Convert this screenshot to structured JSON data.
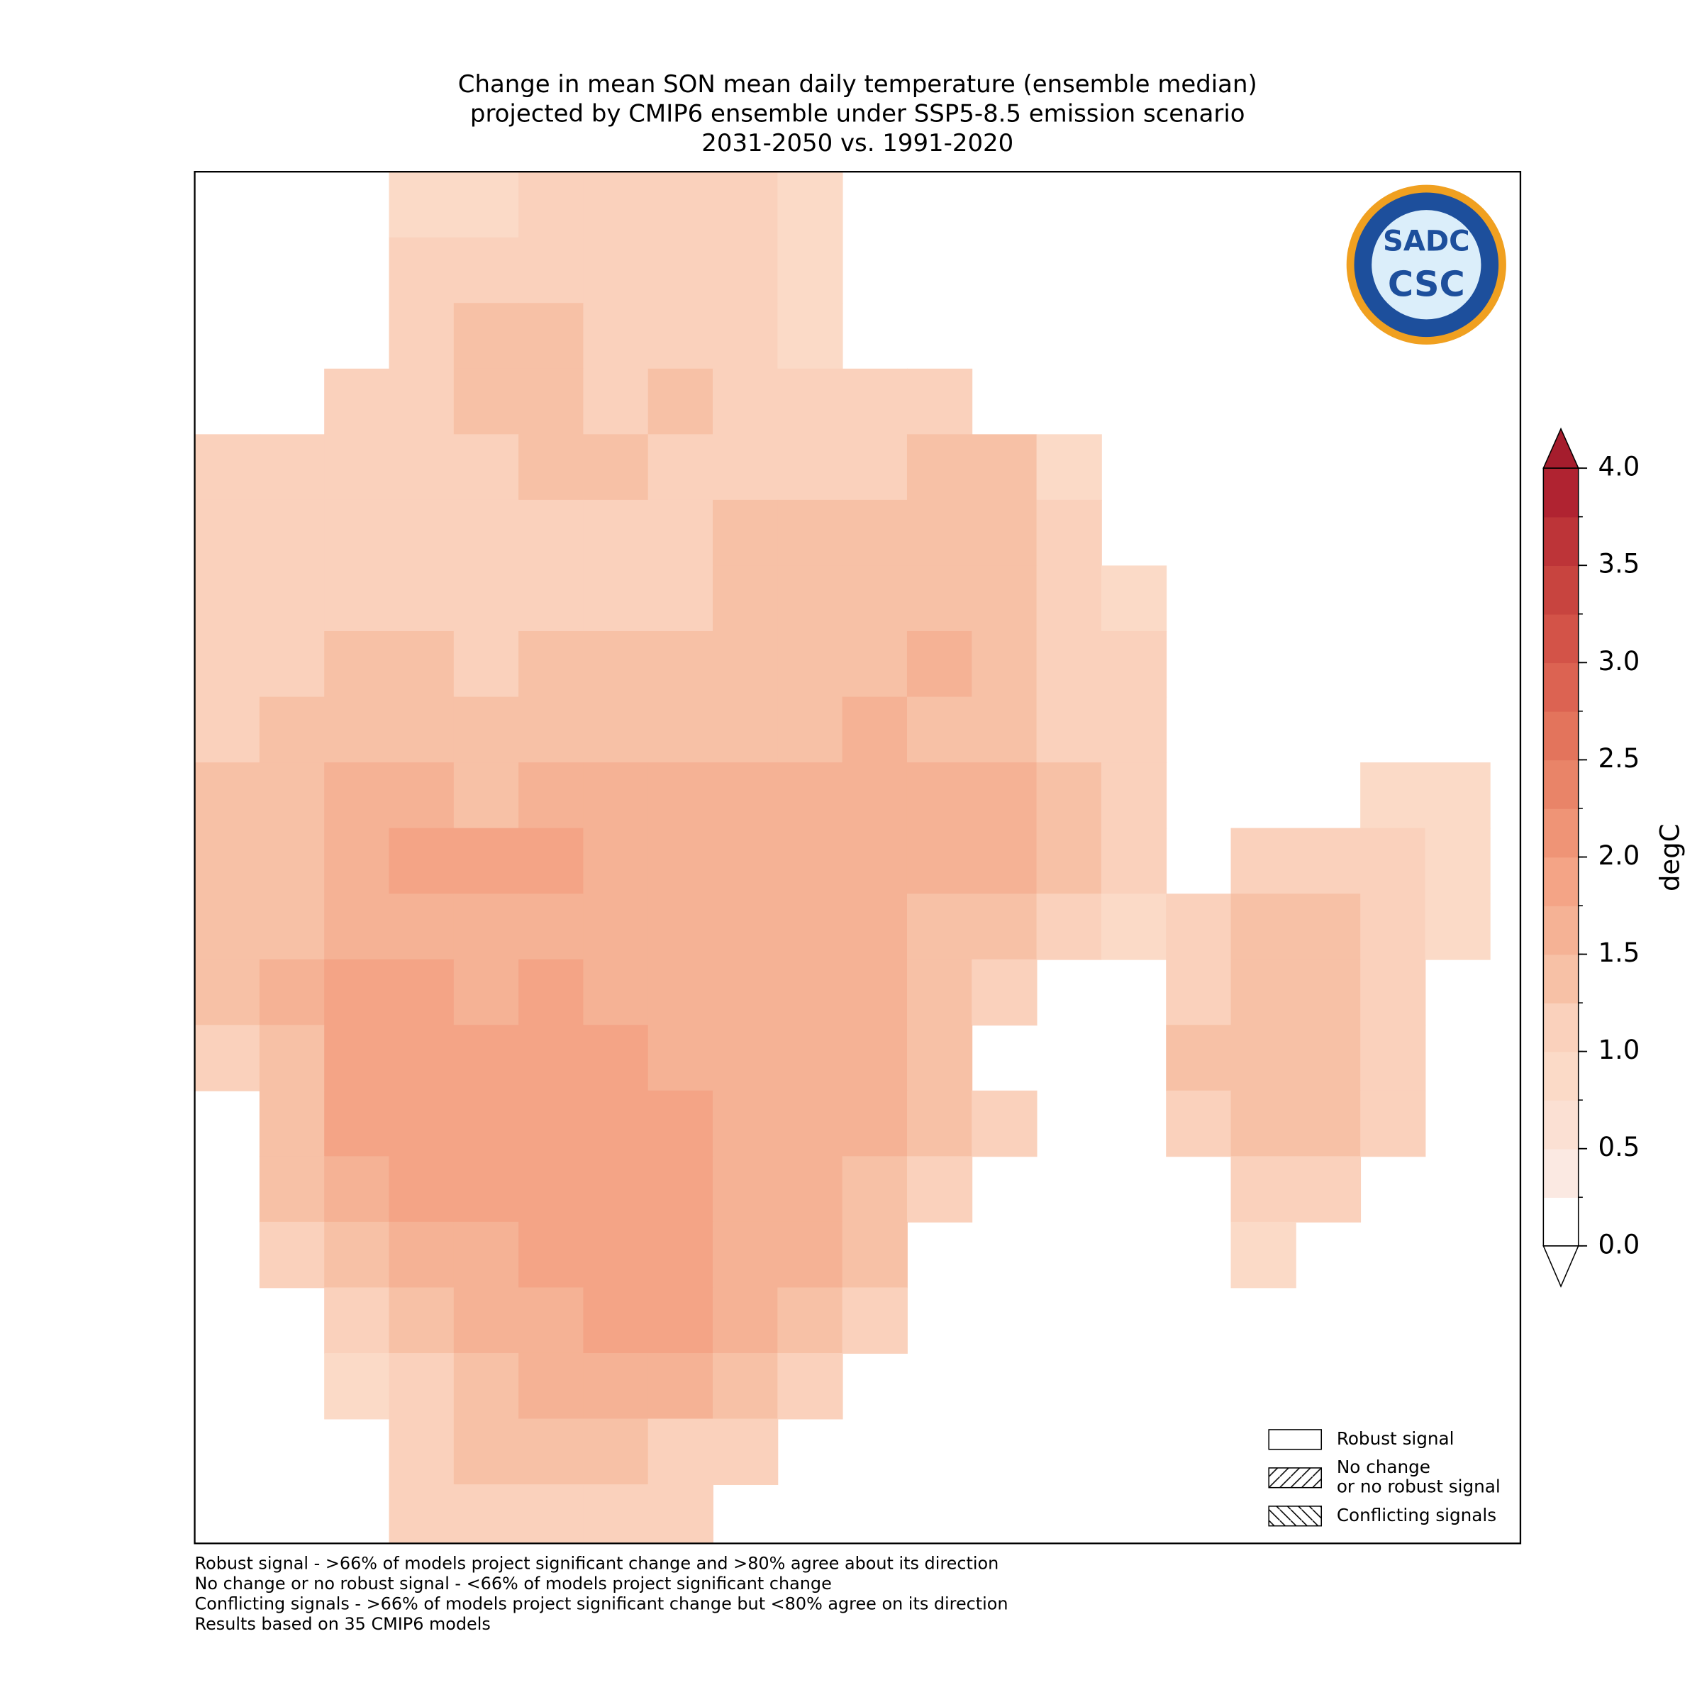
{
  "chart_data": {
    "type": "map",
    "title": [
      "Change in mean SON mean daily temperature (ensemble median)",
      "projected by CMIP6 ensemble under SSP5-8.5 emission scenario",
      "2031-2050 vs. 1991-2020"
    ],
    "colorbar": {
      "label": "degC",
      "levels": [
        0,
        0.25,
        0.5,
        0.75,
        1,
        1.25,
        1.5,
        1.75,
        2,
        2.25,
        2.5,
        2.75,
        3,
        3.25,
        3.5,
        3.75,
        4
      ],
      "colors": [
        "#ffffff",
        "#fbe9e2",
        "#fbe0d3",
        "#fbdac7",
        "#fad1bc",
        "#f7c1a6",
        "#f5b295",
        "#f4a486",
        "#ef9476",
        "#e98468",
        "#e3745c",
        "#dc6352",
        "#d35348",
        "#c8443f",
        "#bd3438",
        "#b02331"
      ],
      "over_color": "#a51d2d",
      "under_color": "#ffffff",
      "ticks": [
        {
          "value": 0,
          "label": "0.0"
        },
        0.5,
        {
          "value": 1,
          "label": "1.0"
        },
        1.5,
        {
          "value": 2,
          "label": "2.0"
        },
        2.5,
        {
          "value": 3,
          "label": "3.0"
        },
        3.5,
        {
          "value": 4,
          "label": "4.0"
        }
      ]
    },
    "cells": [
      [
        null,
        null,
        null,
        0.9,
        0.9,
        1.0,
        1.0,
        1.0,
        1.0,
        0.9,
        null,
        null,
        null,
        null,
        null,
        null,
        null,
        null,
        null,
        null,
        null
      ],
      [
        null,
        null,
        null,
        1.1,
        1.1,
        1.1,
        1.1,
        1.1,
        1.1,
        0.9,
        null,
        null,
        null,
        null,
        null,
        null,
        null,
        null,
        null,
        null,
        null
      ],
      [
        null,
        null,
        null,
        1.1,
        1.3,
        1.3,
        1.1,
        1.1,
        1.1,
        0.9,
        null,
        null,
        null,
        null,
        null,
        null,
        null,
        null,
        null,
        null,
        null
      ],
      [
        null,
        null,
        1.1,
        1.1,
        1.3,
        1.3,
        1.1,
        1.3,
        1.1,
        1.1,
        1.1,
        1.1,
        null,
        null,
        null,
        null,
        null,
        null,
        null,
        null,
        null
      ],
      [
        1.1,
        1.1,
        1.1,
        1.1,
        1.1,
        1.3,
        1.3,
        1.1,
        1.1,
        1.1,
        1.1,
        1.3,
        1.3,
        0.9,
        null,
        null,
        null,
        null,
        null,
        null,
        null
      ],
      [
        1.1,
        1.1,
        1.1,
        1.1,
        1.1,
        1.1,
        1.1,
        1.1,
        1.3,
        1.3,
        1.3,
        1.3,
        1.3,
        1.1,
        null,
        null,
        null,
        null,
        null,
        null,
        null
      ],
      [
        1.1,
        1.1,
        1.1,
        1.1,
        1.1,
        1.1,
        1.1,
        1.1,
        1.3,
        1.3,
        1.3,
        1.3,
        1.3,
        1.1,
        0.9,
        null,
        null,
        null,
        null,
        null,
        null
      ],
      [
        1.1,
        1.1,
        1.3,
        1.3,
        1.1,
        1.3,
        1.3,
        1.3,
        1.3,
        1.3,
        1.3,
        1.6,
        1.3,
        1.1,
        1.1,
        null,
        null,
        null,
        null,
        null,
        null
      ],
      [
        1.1,
        1.3,
        1.3,
        1.3,
        1.3,
        1.3,
        1.3,
        1.3,
        1.3,
        1.3,
        1.6,
        1.3,
        1.3,
        1.1,
        1.1,
        null,
        null,
        null,
        null,
        null,
        null
      ],
      [
        1.3,
        1.3,
        1.6,
        1.6,
        1.3,
        1.6,
        1.6,
        1.6,
        1.6,
        1.6,
        1.6,
        1.6,
        1.6,
        1.3,
        1.1,
        null,
        null,
        null,
        0.9,
        0.9,
        null
      ],
      [
        1.3,
        1.3,
        1.6,
        1.8,
        1.8,
        1.8,
        1.6,
        1.6,
        1.6,
        1.6,
        1.6,
        1.6,
        1.6,
        1.3,
        1.1,
        null,
        1.1,
        1.1,
        1.1,
        0.9,
        null
      ],
      [
        1.3,
        1.3,
        1.6,
        1.6,
        1.6,
        1.6,
        1.6,
        1.6,
        1.6,
        1.6,
        1.6,
        1.3,
        1.3,
        1.1,
        0.9,
        1.1,
        1.3,
        1.3,
        1.1,
        0.9,
        null
      ],
      [
        1.3,
        1.6,
        1.8,
        1.8,
        1.6,
        1.8,
        1.6,
        1.6,
        1.6,
        1.6,
        1.6,
        1.3,
        1.1,
        null,
        null,
        1.1,
        1.3,
        1.3,
        1.1,
        null,
        null
      ],
      [
        1.1,
        1.3,
        1.8,
        1.8,
        1.8,
        1.8,
        1.8,
        1.6,
        1.6,
        1.6,
        1.6,
        1.3,
        null,
        null,
        null,
        1.3,
        1.3,
        1.3,
        1.1,
        null,
        null
      ],
      [
        null,
        1.3,
        1.8,
        1.8,
        1.8,
        1.8,
        1.8,
        1.8,
        1.6,
        1.6,
        1.6,
        1.3,
        1.1,
        null,
        null,
        1.1,
        1.3,
        1.3,
        1.1,
        null,
        null
      ],
      [
        null,
        1.3,
        1.6,
        1.8,
        1.8,
        1.8,
        1.8,
        1.8,
        1.6,
        1.6,
        1.3,
        1.1,
        null,
        null,
        null,
        null,
        1.1,
        1.1,
        null,
        null,
        null
      ],
      [
        null,
        1.1,
        1.3,
        1.6,
        1.6,
        1.8,
        1.8,
        1.8,
        1.6,
        1.6,
        1.3,
        null,
        null,
        null,
        null,
        null,
        0.9,
        null,
        null,
        null,
        null
      ],
      [
        null,
        null,
        1.1,
        1.3,
        1.6,
        1.6,
        1.8,
        1.8,
        1.6,
        1.3,
        1.1,
        null,
        null,
        null,
        null,
        null,
        null,
        null,
        null,
        null,
        null
      ],
      [
        null,
        null,
        0.9,
        1.1,
        1.3,
        1.6,
        1.6,
        1.6,
        1.3,
        1.1,
        null,
        null,
        null,
        null,
        null,
        null,
        null,
        null,
        null,
        null,
        null
      ],
      [
        null,
        null,
        null,
        1.1,
        1.3,
        1.3,
        1.3,
        1.1,
        1.1,
        null,
        null,
        null,
        null,
        null,
        null,
        null,
        null,
        null,
        null,
        null,
        null
      ],
      [
        null,
        null,
        null,
        1.1,
        1.1,
        1.1,
        1.1,
        1.1,
        null,
        null,
        null,
        null,
        null,
        null,
        null,
        null,
        null,
        null,
        null,
        null,
        null
      ]
    ],
    "legend": [
      {
        "label": "Robust signal",
        "hatch": "none"
      },
      {
        "label": [
          "No change",
          "or no robust signal"
        ],
        "hatch": "/"
      },
      {
        "label": "Conflicting signals",
        "hatch": "\\"
      }
    ],
    "footnotes": [
      "Robust signal - >66% of models project significant change and >80% agree about its direction",
      "No change or no robust signal - <66% of models project significant change",
      "Conflicting signals - >66% of models project significant change but <80% agree on its direction",
      "Results based on 35 CMIP6 models"
    ],
    "logo": {
      "top": "SADC",
      "bottom": "CSC"
    }
  }
}
